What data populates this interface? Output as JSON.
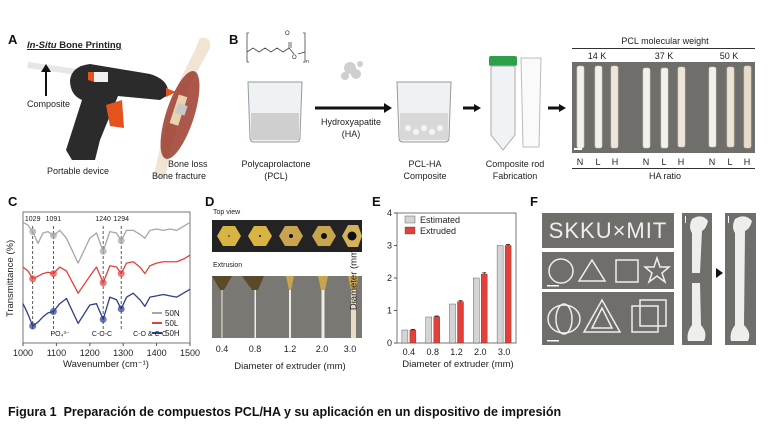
{
  "panels": {
    "a": {
      "letter": "A",
      "title_italic": "In-Situ",
      "title_rest": " Bone Printing",
      "composite": "Composite",
      "device": "Portable device",
      "bone_loss": "Bone loss",
      "bone_fracture": "Bone fracture"
    },
    "b": {
      "letter": "B",
      "pcl_line1": "Polycaprolactone",
      "pcl_line2": "(PCL)",
      "ha_line1": "Hydroxyapatite",
      "ha_line2": "(HA)",
      "comp_line1": "PCL-HA",
      "comp_line2": "Composite",
      "rod_line1": "Composite rod",
      "rod_line2": "Fabrication",
      "struct_O1": "O",
      "struct_O2": "O",
      "struct_n": "n",
      "mw_title": "PCL molecular weight",
      "mw": [
        "14 K",
        "37 K",
        "50 K"
      ],
      "ratios": [
        "N",
        "L",
        "H"
      ],
      "ha_ratio": "HA ratio"
    },
    "c": {
      "letter": "C"
    },
    "d": {
      "letter": "D",
      "top_view": "Top view",
      "extrusion": "Extrusion",
      "sizes": [
        "0.4",
        "0.8",
        "1.2",
        "2.0",
        "3.0"
      ],
      "xlabel": "Diameter of extruder (mm)"
    },
    "e": {
      "letter": "E"
    },
    "f": {
      "letter": "F",
      "text_print": "SKKU×MIT"
    }
  },
  "chart_data": [
    {
      "type": "line",
      "xlabel": "Wavenumber (cm⁻¹)",
      "ylabel": "Transmittance (%)",
      "xlim": [
        1000,
        1500
      ],
      "xticks": [
        "1000",
        "1100",
        "1200",
        "1300",
        "1400",
        "1500"
      ],
      "x": [
        1000,
        1015,
        1029,
        1045,
        1060,
        1075,
        1091,
        1110,
        1130,
        1165,
        1200,
        1220,
        1240,
        1260,
        1280,
        1294,
        1310,
        1330,
        1350,
        1365,
        1380,
        1400,
        1420,
        1440,
        1460,
        1480,
        1500
      ],
      "series": [
        {
          "name": "50N",
          "color": "#a6a6a6",
          "values": [
            92,
            90,
            85,
            76,
            84,
            85,
            82,
            86,
            80,
            61,
            80,
            84,
            70,
            85,
            84,
            78,
            86,
            86,
            83,
            80,
            86,
            87,
            86,
            87,
            86,
            89,
            92
          ]
        },
        {
          "name": "50L",
          "color": "#e2403a",
          "values": [
            58,
            55,
            49,
            51,
            53,
            54,
            53,
            58,
            55,
            38,
            51,
            58,
            46,
            59,
            58,
            53,
            61,
            62,
            58,
            53,
            59,
            61,
            62,
            62,
            62,
            64,
            67
          ]
        },
        {
          "name": "50H",
          "color": "#2e3d8f",
          "values": [
            30,
            22,
            13,
            16,
            20,
            23,
            24,
            30,
            34,
            15,
            29,
            30,
            18,
            35,
            33,
            26,
            35,
            38,
            33,
            28,
            35,
            36,
            37,
            36,
            35,
            38,
            41
          ]
        }
      ],
      "peaks": [
        "1029",
        "1091",
        "1240",
        "1294"
      ],
      "annotations": [
        "PO₄³⁻",
        "C-O-C",
        "C-O & C-C"
      ],
      "legend": "bottom-right",
      "grid": false
    },
    {
      "type": "bar",
      "xlabel": "Diameter of extruder (mm)",
      "ylabel": "Diameter (mm)",
      "categories": [
        "0.4",
        "0.8",
        "1.2",
        "2.0",
        "3.0"
      ],
      "ylim": [
        0,
        4
      ],
      "yticks": [
        "0",
        "1",
        "2",
        "3",
        "4"
      ],
      "series": [
        {
          "name": "Estimated",
          "color": "#d4d4d4",
          "values": [
            0.4,
            0.8,
            1.2,
            2.0,
            3.0
          ]
        },
        {
          "name": "Extruded",
          "color": "#e2403a",
          "values": [
            0.4,
            0.81,
            1.27,
            2.12,
            3.0
          ],
          "errors": [
            0.02,
            0.02,
            0.03,
            0.04,
            0.03
          ]
        }
      ],
      "legend": "top-left"
    }
  ],
  "caption": {
    "label": "Figura 1",
    "text": "Preparación de compuestos PCL/HA y su aplicación en un dispositivo de impresión"
  }
}
